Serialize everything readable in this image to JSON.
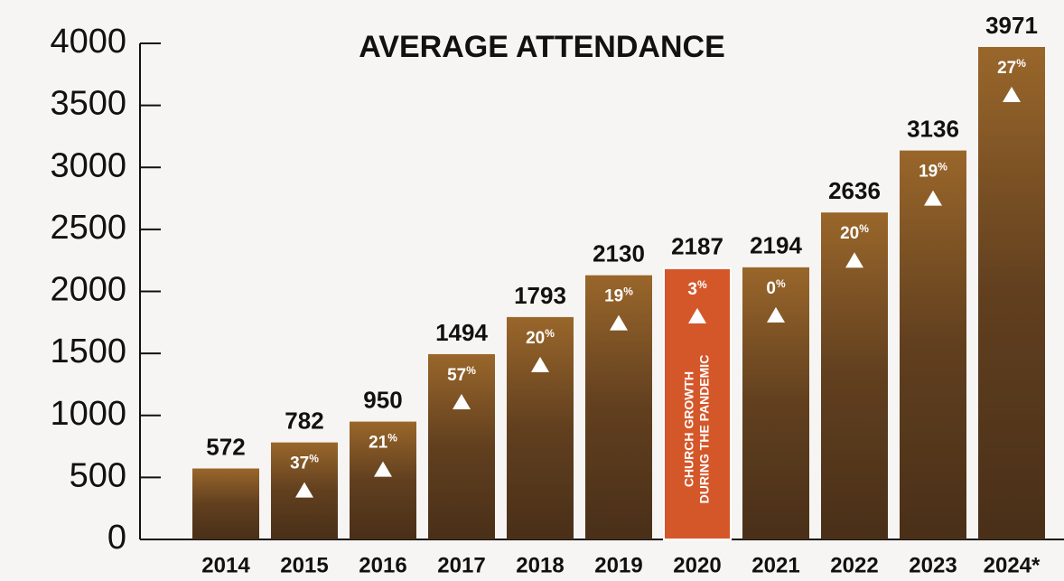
{
  "chart_data": {
    "type": "bar",
    "title": "AVERAGE ATTENDANCE",
    "categories": [
      "2014",
      "2015",
      "2016",
      "2017",
      "2018",
      "2019",
      "2020",
      "2021",
      "2022",
      "2023",
      "2024*"
    ],
    "values": [
      572,
      782,
      950,
      1494,
      1793,
      2130,
      2187,
      2194,
      2636,
      3136,
      3971
    ],
    "growth_labels": [
      null,
      "37%",
      "21%",
      "57%",
      "20%",
      "19%",
      "3%",
      "0%",
      "20%",
      "19%",
      "27%"
    ],
    "colors": [
      "#6b4724",
      "#6b4724",
      "#6b4724",
      "#6b4724",
      "#6b4724",
      "#6b4724",
      "#d4572a",
      "#6b4724",
      "#6b4724",
      "#6b4724",
      "#6b4724"
    ],
    "bar_annotation": {
      "category_index": 6,
      "lines": [
        "CHURCH GROWTH",
        "DURING THE PANDEMIC"
      ]
    },
    "ylim": [
      0,
      4000
    ],
    "yticks": [
      0,
      500,
      1000,
      1500,
      2000,
      2500,
      3000,
      3500,
      4000
    ],
    "grid": false
  }
}
